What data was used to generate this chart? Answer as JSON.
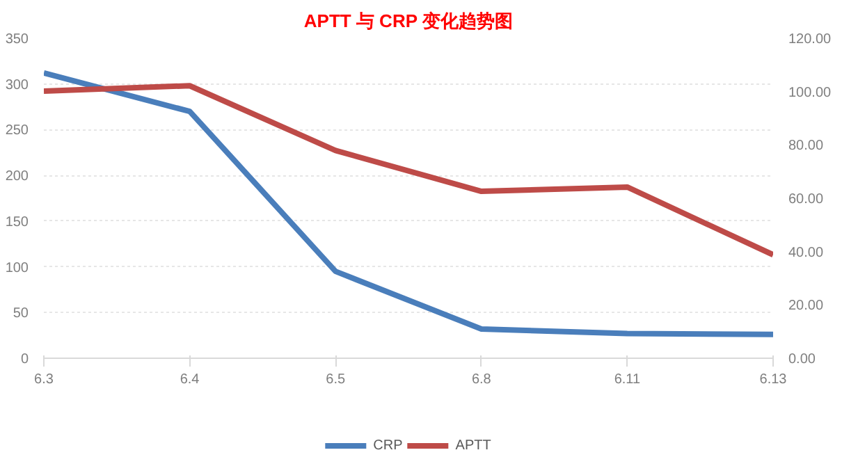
{
  "chart_data": {
    "type": "line",
    "title": "APTT 与 CRP 变化趋势图",
    "categories": [
      "6.3",
      "6.4",
      "6.5",
      "6.8",
      "6.11",
      "6.13"
    ],
    "series": [
      {
        "name": "CRP",
        "color": "#4a7ebb",
        "values": [
          312,
          270,
          95,
          32,
          27,
          26
        ]
      },
      {
        "name": "APTT",
        "color": "#be4b48",
        "values": [
          100.2,
          102.2,
          77.9,
          62.6,
          64.2,
          38.8
        ],
        "axis": "y2"
      }
    ],
    "ylim": [
      0,
      350
    ],
    "yticks": [
      0,
      50,
      100,
      150,
      200,
      250,
      300,
      350
    ],
    "y2lim": [
      0,
      120
    ],
    "y2ticks": [
      {
        "value": 0,
        "label": "0.00"
      },
      {
        "value": 20,
        "label": "20.00"
      },
      {
        "value": 40,
        "label": "40.00"
      },
      {
        "value": 60,
        "label": "60.00"
      },
      {
        "value": 80,
        "label": "80.00"
      },
      {
        "value": 100,
        "label": "100.00"
      },
      {
        "value": 120,
        "label": "120.00"
      }
    ],
    "grid": "y",
    "legend": "bottom",
    "marker": "none",
    "line_style": "solid"
  }
}
